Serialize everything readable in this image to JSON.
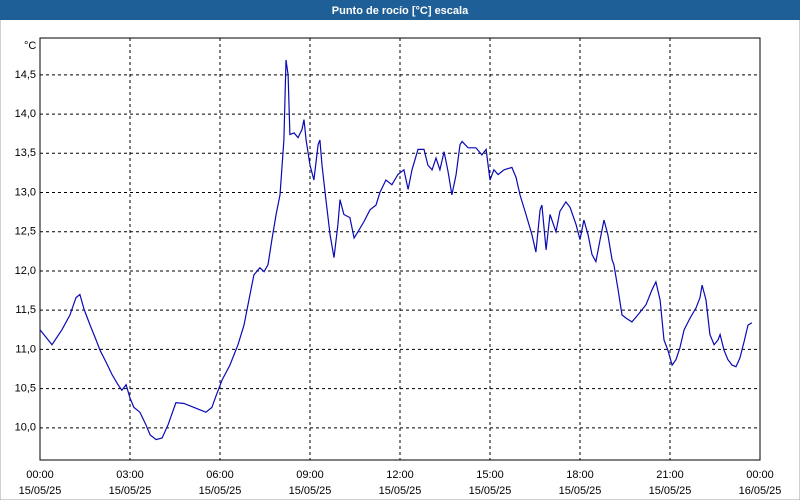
{
  "chart_data": {
    "type": "line",
    "title": "Punto de rocío [°C] escala",
    "ylabel": "°C",
    "xlim": [
      0,
      24
    ],
    "ylim": [
      9.59,
      14.97
    ],
    "xticks": [
      {
        "value": 0,
        "label": "00:00"
      },
      {
        "value": 3,
        "label": "03:00"
      },
      {
        "value": 6,
        "label": "06:00"
      },
      {
        "value": 9,
        "label": "09:00"
      },
      {
        "value": 12,
        "label": "12:00"
      },
      {
        "value": 15,
        "label": "15:00"
      },
      {
        "value": 18,
        "label": "18:00"
      },
      {
        "value": 21,
        "label": "21:00"
      },
      {
        "value": 24,
        "label": "00:00"
      }
    ],
    "xtick_dates": [
      "15/05/25",
      "15/05/25",
      "15/05/25",
      "15/05/25",
      "15/05/25",
      "15/05/25",
      "15/05/25",
      "15/05/25",
      "16/05/25"
    ],
    "yticks": [
      {
        "value": 10,
        "label": "10,0"
      },
      {
        "value": 10.5,
        "label": "10,5"
      },
      {
        "value": 11,
        "label": "11,0"
      },
      {
        "value": 11.5,
        "label": "11,5"
      },
      {
        "value": 12,
        "label": "12,0"
      },
      {
        "value": 12.5,
        "label": "12,5"
      },
      {
        "value": 13,
        "label": "13,0"
      },
      {
        "value": 13.5,
        "label": "13,5"
      },
      {
        "value": 14,
        "label": "14,0"
      },
      {
        "value": 14.5,
        "label": "14,5"
      }
    ],
    "grid": true,
    "x": [
      0,
      0.4,
      0.73,
      1.0,
      1.2,
      1.33,
      1.47,
      1.67,
      1.87,
      2.0,
      2.2,
      2.4,
      2.6,
      2.73,
      2.87,
      3.0,
      3.13,
      3.33,
      3.53,
      3.67,
      3.87,
      4.07,
      4.27,
      4.53,
      4.8,
      5.07,
      5.33,
      5.53,
      5.73,
      5.87,
      6.07,
      6.33,
      6.6,
      6.8,
      7.0,
      7.13,
      7.33,
      7.47,
      7.6,
      7.73,
      7.87,
      8.0,
      8.13,
      8.2,
      8.27,
      8.33,
      8.47,
      8.6,
      8.73,
      8.8,
      8.87,
      9.0,
      9.13,
      9.27,
      9.33,
      9.4,
      9.53,
      9.67,
      9.8,
      9.93,
      10.0,
      10.13,
      10.33,
      10.47,
      10.6,
      10.8,
      11.0,
      11.2,
      11.33,
      11.53,
      11.73,
      11.93,
      12.13,
      12.27,
      12.4,
      12.6,
      12.8,
      12.93,
      13.07,
      13.2,
      13.33,
      13.47,
      13.6,
      13.73,
      13.87,
      14.0,
      14.07,
      14.27,
      14.53,
      14.73,
      14.87,
      15.0,
      15.13,
      15.27,
      15.47,
      15.73,
      15.87,
      16.0,
      16.2,
      16.4,
      16.53,
      16.67,
      16.73,
      16.87,
      17.0,
      17.2,
      17.33,
      17.53,
      17.67,
      17.87,
      18.0,
      18.13,
      18.27,
      18.4,
      18.53,
      18.67,
      18.8,
      18.93,
      19.07,
      19.13,
      19.27,
      19.4,
      19.53,
      19.73,
      19.93,
      20.2,
      20.4,
      20.53,
      20.67,
      20.8,
      20.93,
      21.07,
      21.2,
      21.33,
      21.47,
      21.67,
      21.87,
      22.0,
      22.07,
      22.2,
      22.33,
      22.47,
      22.6,
      22.67,
      22.8,
      22.93,
      23.07,
      23.2,
      23.33,
      23.47,
      23.6,
      23.73
    ],
    "series": [
      {
        "color": "#0a0ab4",
        "values": [
          11.25,
          11.06,
          11.25,
          11.44,
          11.66,
          11.7,
          11.51,
          11.31,
          11.12,
          10.99,
          10.84,
          10.68,
          10.55,
          10.48,
          10.55,
          10.38,
          10.26,
          10.2,
          10.04,
          9.91,
          9.85,
          9.87,
          10.04,
          10.32,
          10.31,
          10.27,
          10.23,
          10.2,
          10.26,
          10.41,
          10.61,
          10.8,
          11.06,
          11.31,
          11.7,
          11.95,
          12.04,
          11.99,
          12.08,
          12.4,
          12.72,
          12.97,
          13.67,
          14.69,
          14.5,
          13.74,
          13.76,
          13.7,
          13.8,
          13.93,
          13.67,
          13.35,
          13.16,
          13.61,
          13.67,
          13.35,
          12.91,
          12.46,
          12.17,
          12.59,
          12.91,
          12.72,
          12.68,
          12.42,
          12.5,
          12.63,
          12.78,
          12.84,
          13.0,
          13.16,
          13.1,
          13.23,
          13.29,
          13.04,
          13.29,
          13.55,
          13.55,
          13.35,
          13.29,
          13.44,
          13.29,
          13.52,
          13.27,
          12.97,
          13.23,
          13.61,
          13.65,
          13.57,
          13.57,
          13.48,
          13.55,
          13.16,
          13.29,
          13.23,
          13.29,
          13.32,
          13.19,
          12.97,
          12.72,
          12.46,
          12.24,
          12.78,
          12.84,
          12.27,
          12.72,
          12.5,
          12.76,
          12.88,
          12.81,
          12.59,
          12.4,
          12.65,
          12.46,
          12.21,
          12.12,
          12.4,
          12.65,
          12.46,
          12.14,
          12.08,
          11.76,
          11.44,
          11.4,
          11.35,
          11.44,
          11.57,
          11.76,
          11.86,
          11.63,
          11.12,
          10.99,
          10.8,
          10.87,
          11.02,
          11.25,
          11.4,
          11.53,
          11.66,
          11.82,
          11.63,
          11.19,
          11.06,
          11.12,
          11.19,
          10.99,
          10.87,
          10.8,
          10.78,
          10.89,
          11.1,
          11.31,
          11.34
        ]
      }
    ]
  }
}
